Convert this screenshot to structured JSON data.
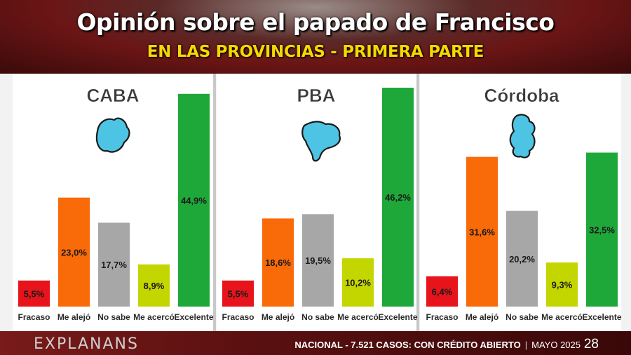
{
  "header": {
    "title": "Opinión sobre el papado de Francisco",
    "subtitle": "EN LAS PROVINCIAS - PRIMERA PARTE"
  },
  "footer": {
    "brand": "EXPLANANS",
    "source_bold": "NACIONAL - 7.521 CASOS: CON CRÉDITO ABIERTO",
    "date": "MAYO 2025",
    "page": "28"
  },
  "chart_data": [
    {
      "type": "bar",
      "title": "CABA",
      "categories": [
        "Fracaso",
        "Me alejó",
        "No sabe",
        "Me acercó",
        "Excelente"
      ],
      "values": [
        5.5,
        23.0,
        17.7,
        8.9,
        44.9
      ],
      "value_labels": [
        "5,5%",
        "23,0%",
        "17,7%",
        "8,9%",
        "44,9%"
      ],
      "colors": [
        "#e8141b",
        "#f96a09",
        "#a7a7a7",
        "#c4d600",
        "#1fa83a"
      ],
      "ylim": [
        0,
        46.2
      ],
      "grid": false,
      "legend": "none"
    },
    {
      "type": "bar",
      "title": "PBA",
      "categories": [
        "Fracaso",
        "Me alejó",
        "No sabe",
        "Me acercó",
        "Excelente"
      ],
      "values": [
        5.5,
        18.6,
        19.5,
        10.2,
        46.2
      ],
      "value_labels": [
        "5,5%",
        "18,6%",
        "19,5%",
        "10,2%",
        "46,2%"
      ],
      "colors": [
        "#e8141b",
        "#f96a09",
        "#a7a7a7",
        "#c4d600",
        "#1fa83a"
      ],
      "ylim": [
        0,
        46.2
      ],
      "grid": false,
      "legend": "none"
    },
    {
      "type": "bar",
      "title": "Córdoba",
      "categories": [
        "Fracaso",
        "Me alejó",
        "No sabe",
        "Me acercó",
        "Excelente"
      ],
      "values": [
        6.4,
        31.6,
        20.2,
        9.3,
        32.5
      ],
      "value_labels": [
        "6,4%",
        "31,6%",
        "20,2%",
        "9,3%",
        "32,5%"
      ],
      "colors": [
        "#e8141b",
        "#f96a09",
        "#a7a7a7",
        "#c4d600",
        "#1fa83a"
      ],
      "ylim": [
        0,
        46.2
      ],
      "grid": false,
      "legend": "none"
    }
  ]
}
